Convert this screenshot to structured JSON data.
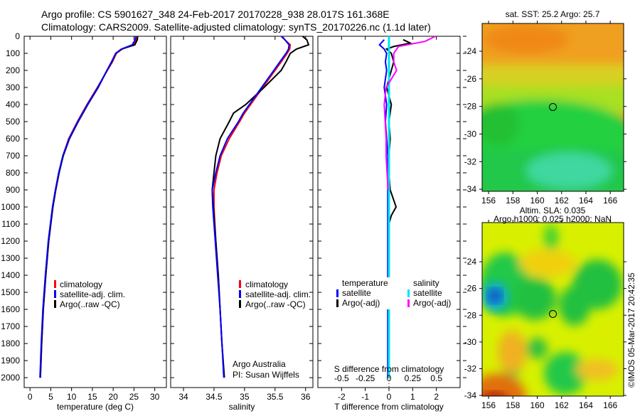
{
  "title_line1": "Argo profile: CS 5901627_348 24-Feb-2017 20170228_938 28.017S 161.368E",
  "title_line2": "Climatology: CARS2009. Satellite-adjusted climatology: synTS_20170226.nc (1.1d later)",
  "colors": {
    "climatology": "#ff0000",
    "satellite": "#0000ff",
    "argo": "#000000",
    "sal_satellite": "#00e5ee",
    "sal_argo": "#ff00ff"
  },
  "chart_data": [
    {
      "type": "line",
      "id": "temperature",
      "xlabel": "temperature (deg C)",
      "ylabel": "",
      "xlim": [
        -1.4,
        32.8
      ],
      "ylim": [
        0,
        2058
      ],
      "xticks": [
        0,
        5,
        10,
        15,
        20,
        25,
        30
      ],
      "yticks": [
        0,
        100,
        200,
        300,
        400,
        500,
        600,
        700,
        800,
        900,
        1000,
        1100,
        1200,
        1300,
        1400,
        1500,
        1600,
        1700,
        1800,
        1900,
        2000
      ],
      "depth": [
        0,
        20,
        50,
        75,
        100,
        150,
        200,
        300,
        400,
        500,
        600,
        700,
        800,
        900,
        1000,
        1200,
        1400,
        1600,
        1800,
        2000
      ],
      "legend": [
        "climatology",
        "satellite-adj. clim.",
        "Argo(..raw -QC)"
      ],
      "series": [
        {
          "name": "climatology",
          "color": "#ff0000",
          "values": [
            25.6,
            25.5,
            24.8,
            22.2,
            20.8,
            19.8,
            18.6,
            16.2,
            13.7,
            11.4,
            9.3,
            7.9,
            7.0,
            6.2,
            5.5,
            4.5,
            3.8,
            3.2,
            2.8,
            2.5
          ]
        },
        {
          "name": "Argo",
          "color": "#000000",
          "values": [
            25.9,
            25.8,
            25.2,
            22,
            20.6,
            19.7,
            18.5,
            16.4,
            13.9,
            11.6,
            9.5,
            8.0,
            7.0,
            6.2,
            5.5,
            4.5,
            3.8,
            3.2,
            2.8,
            2.5
          ]
        },
        {
          "name": "satellite-adj. clim.",
          "color": "#0000ff",
          "values": [
            25.4,
            25.3,
            24.6,
            22.0,
            20.6,
            19.6,
            18.5,
            16.3,
            13.8,
            11.5,
            9.4,
            7.9,
            6.9,
            6.1,
            5.4,
            4.4,
            3.7,
            3.1,
            2.7,
            2.4
          ]
        }
      ]
    },
    {
      "type": "line",
      "id": "salinity",
      "xlabel": "salinity",
      "xlim": [
        33.79,
        36.12
      ],
      "ylim": [
        0,
        2058
      ],
      "xticks": [
        34,
        34.5,
        35,
        35.5,
        36
      ],
      "depth": [
        0,
        20,
        50,
        75,
        100,
        150,
        200,
        300,
        400,
        450,
        500,
        600,
        700,
        800,
        900,
        1000,
        1200,
        1400,
        1600,
        1800,
        2000
      ],
      "legend": [
        "climatology",
        "satellite-adj. clim.",
        "Argo(..raw -QC)"
      ],
      "annotation": [
        "Argo Australia",
        "PI: Susan Wijffels"
      ],
      "series": [
        {
          "name": "climatology",
          "color": "#ff0000",
          "values": [
            35.62,
            35.66,
            35.75,
            35.74,
            35.7,
            35.6,
            35.5,
            35.3,
            35.1,
            35.0,
            34.92,
            34.75,
            34.62,
            34.55,
            34.5,
            34.5,
            34.53,
            34.57,
            34.6,
            34.63,
            34.67
          ]
        },
        {
          "name": "Argo",
          "color": "#000000",
          "values": [
            35.95,
            36.02,
            36.05,
            35.85,
            35.75,
            35.68,
            35.6,
            35.32,
            35.02,
            34.82,
            34.75,
            34.6,
            34.53,
            34.5,
            34.47,
            34.49,
            34.53,
            34.57,
            34.6,
            34.63,
            34.67
          ]
        },
        {
          "name": "satellite-adj. clim.",
          "color": "#0000ff",
          "values": [
            35.6,
            35.66,
            35.73,
            35.72,
            35.68,
            35.58,
            35.48,
            35.28,
            35.08,
            34.98,
            34.9,
            34.72,
            34.6,
            34.53,
            34.47,
            34.48,
            34.52,
            34.56,
            34.6,
            34.63,
            34.66
          ]
        }
      ]
    },
    {
      "type": "line",
      "id": "difference",
      "xlabel": "T difference from climatology",
      "xlabel_top": "S difference from climatology",
      "xlim": [
        -3,
        3
      ],
      "xlim_s": [
        -0.75,
        0.75
      ],
      "ylim": [
        0,
        2058
      ],
      "xticks": [
        -2,
        -1,
        0,
        1,
        2
      ],
      "xticks_s": [
        "-0.5",
        "-0.25",
        "0",
        "0.25",
        "0.5"
      ],
      "xticks_s_values": [
        -0.5,
        -0.25,
        0,
        0.25,
        0.5
      ],
      "legend_t_title": "temperature",
      "legend_s_title": "salinity",
      "legend_t": [
        "satellite",
        "Argo(-adj)"
      ],
      "legend_s": [
        "satellite",
        "Argo(-adj)"
      ],
      "series": [
        {
          "name": "T satellite",
          "axis": "t",
          "color": "#0000ff",
          "depth": [
            20,
            50,
            75,
            100,
            150,
            200,
            300,
            400,
            500,
            600,
            700,
            800,
            1000,
            1500,
            2000
          ],
          "values": [
            -0.2,
            -0.4,
            -0.2,
            -0.1,
            -0.15,
            -0.1,
            -0.2,
            -0.1,
            -0.15,
            -0.1,
            -0.05,
            -0.05,
            -0.05,
            -0.05,
            -0.05
          ]
        },
        {
          "name": "T Argo",
          "axis": "t",
          "color": "#000000",
          "depth": [
            20,
            40,
            60,
            75,
            100,
            150,
            200,
            300,
            400,
            500,
            600,
            700,
            800,
            900,
            1000,
            1050,
            1100,
            1500,
            2000
          ],
          "values": [
            0.6,
            0.9,
            0.2,
            -0.1,
            0.1,
            0.2,
            0.1,
            -0.1,
            0.1,
            0.0,
            0.05,
            0.0,
            0.0,
            0.05,
            0.3,
            0.1,
            0.0,
            0.0,
            0.0
          ]
        },
        {
          "name": "S satellite",
          "axis": "s",
          "color": "#00e5ee",
          "depth": [
            0,
            2000
          ],
          "values": [
            0,
            0
          ]
        },
        {
          "name": "S Argo",
          "axis": "s",
          "color": "#ff00ff",
          "depth": [
            0,
            30,
            60,
            100,
            150,
            200,
            300,
            400,
            500,
            600,
            700,
            800,
            900
          ],
          "values": [
            0.49,
            0.38,
            0.1,
            0.05,
            0.05,
            0.08,
            -0.03,
            -0.05,
            -0.04,
            -0.03,
            -0.03,
            -0.02,
            -0.01
          ]
        }
      ]
    },
    {
      "type": "heatmap",
      "id": "sst-map",
      "title": "sat. SST: 25.2 Argo: 25.7",
      "xticks": [
        156,
        158,
        160,
        162,
        164,
        166
      ],
      "yticks": [
        -24,
        -26,
        -28,
        -30,
        -32,
        -34
      ],
      "float_position": {
        "lon": 161.368,
        "lat": -28.017
      }
    },
    {
      "type": "heatmap",
      "id": "sla-map",
      "title_line1": "Altim. SLA: 0.035",
      "title_line2": "Argo h1000: 0.025 h2000: NaN",
      "xticks": [
        156,
        158,
        160,
        162,
        164,
        166
      ],
      "yticks": [
        -24,
        -26,
        -28,
        -30,
        -32,
        -34
      ],
      "float_position": {
        "lon": 161.368,
        "lat": -28.017
      }
    }
  ],
  "footer": "©IMOS 05-Mar-2017 20:42:35"
}
